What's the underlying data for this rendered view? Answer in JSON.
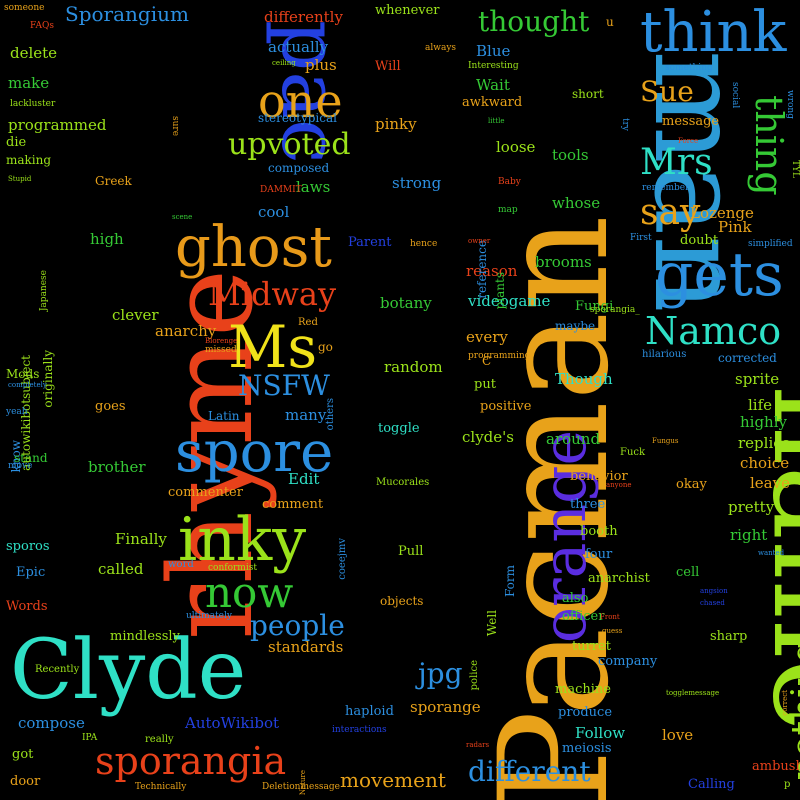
{
  "words": [
    {
      "text": "Pacman",
      "color": "#e8a21a"
    },
    {
      "text": "man",
      "color": "#2c9bd6"
    },
    {
      "text": "name",
      "color": "#9be21a"
    },
    {
      "text": "rhyme",
      "color": "#e8411a"
    },
    {
      "text": "Clyde",
      "color": "#2fe0c6"
    },
    {
      "text": "pac",
      "color": "#2340e0"
    },
    {
      "text": "think",
      "color": "#2c8fe0"
    },
    {
      "text": "one",
      "color": "#e8a21a"
    },
    {
      "text": "ghost",
      "color": "#e89a1a"
    },
    {
      "text": "gets",
      "color": "#2c8fe0"
    },
    {
      "text": "orange",
      "color": "#5a2de0"
    },
    {
      "text": "spore",
      "color": "#2c8fe0"
    },
    {
      "text": "inky",
      "color": "#9be21a"
    },
    {
      "text": "Ms",
      "color": "#f0e21a"
    },
    {
      "text": "sporangia",
      "color": "#e8411a"
    },
    {
      "text": "Namco",
      "color": "#2fe0c6"
    },
    {
      "text": "Mrs",
      "color": "#2fe0c6"
    },
    {
      "text": "say",
      "color": "#e8a21a"
    },
    {
      "text": "thing",
      "color": "#35c935"
    },
    {
      "text": "nothing",
      "color": "#9be21a"
    },
    {
      "text": "now",
      "color": "#35c935"
    },
    {
      "text": "Midway",
      "color": "#e8411a"
    },
    {
      "text": "upvoted",
      "color": "#9be21a"
    },
    {
      "text": "thought",
      "color": "#35c935"
    },
    {
      "text": "Sue",
      "color": "#e8a21a"
    },
    {
      "text": "NSFW",
      "color": "#2c8fe0"
    },
    {
      "text": "people",
      "color": "#2c8fe0"
    },
    {
      "text": "jpg",
      "color": "#2c8fe0"
    },
    {
      "text": "different",
      "color": "#2c8fe0"
    },
    {
      "text": "movement",
      "color": "#e8a21a"
    },
    {
      "text": "Sporangium",
      "color": "#2c8fe0"
    },
    {
      "text": "differently",
      "color": "#e8411a"
    },
    {
      "text": "whenever",
      "color": "#9be21a"
    },
    {
      "text": "actually",
      "color": "#2c8fe0"
    },
    {
      "text": "plus",
      "color": "#e8a21a"
    },
    {
      "text": "Will",
      "color": "#e8411a"
    },
    {
      "text": "Blue",
      "color": "#2c8fe0"
    },
    {
      "text": "Wait",
      "color": "#35c935"
    },
    {
      "text": "awkward",
      "color": "#e8a21a"
    },
    {
      "text": "short",
      "color": "#9be21a"
    },
    {
      "text": "message",
      "color": "#e8a21a"
    },
    {
      "text": "delete",
      "color": "#9be21a"
    },
    {
      "text": "make",
      "color": "#35c935"
    },
    {
      "text": "programmed",
      "color": "#9be21a"
    },
    {
      "text": "die",
      "color": "#9be21a"
    },
    {
      "text": "making",
      "color": "#9be21a"
    },
    {
      "text": "Greek",
      "color": "#e8a21a"
    },
    {
      "text": "high",
      "color": "#35c935"
    },
    {
      "text": "clever",
      "color": "#9be21a"
    },
    {
      "text": "anarchy",
      "color": "#e8a21a"
    },
    {
      "text": "go",
      "color": "#e8a21a"
    },
    {
      "text": "goes",
      "color": "#e8a21a"
    },
    {
      "text": "brother",
      "color": "#35c935"
    },
    {
      "text": "commenter",
      "color": "#e8a21a"
    },
    {
      "text": "Edit",
      "color": "#2fe0c6"
    },
    {
      "text": "comment",
      "color": "#e8a21a"
    },
    {
      "text": "Finally",
      "color": "#9be21a"
    },
    {
      "text": "called",
      "color": "#9be21a"
    },
    {
      "text": "sporos",
      "color": "#2fe0c6"
    },
    {
      "text": "Epic",
      "color": "#2c8fe0"
    },
    {
      "text": "Words",
      "color": "#e8411a"
    },
    {
      "text": "mindlessly",
      "color": "#9be21a"
    },
    {
      "text": "Recently",
      "color": "#9be21a"
    },
    {
      "text": "compose",
      "color": "#2c8fe0"
    },
    {
      "text": "got",
      "color": "#9be21a"
    },
    {
      "text": "door",
      "color": "#e8a21a"
    },
    {
      "text": "AutoWikibot",
      "color": "#2340e0"
    },
    {
      "text": "really",
      "color": "#9be21a"
    },
    {
      "text": "standards",
      "color": "#e8a21a"
    },
    {
      "text": "haploid",
      "color": "#2c8fe0"
    },
    {
      "text": "sporange",
      "color": "#e8a21a"
    },
    {
      "text": "Follow",
      "color": "#2fe0c6"
    },
    {
      "text": "love",
      "color": "#e8a21a"
    },
    {
      "text": "ambush",
      "color": "#e8411a"
    },
    {
      "text": "Calling",
      "color": "#2340e0"
    },
    {
      "text": "meiosis",
      "color": "#2c8fe0"
    },
    {
      "text": "produce",
      "color": "#2c8fe0"
    },
    {
      "text": "machine",
      "color": "#9be21a"
    },
    {
      "text": "company",
      "color": "#2c8fe0"
    },
    {
      "text": "turret",
      "color": "#9be21a"
    },
    {
      "text": "sharp",
      "color": "#9be21a"
    },
    {
      "text": "officer",
      "color": "#35c935"
    },
    {
      "text": "also",
      "color": "#35c935"
    },
    {
      "text": "anarchist",
      "color": "#9be21a"
    },
    {
      "text": "four",
      "color": "#2c8fe0"
    },
    {
      "text": "booth",
      "color": "#9be21a"
    },
    {
      "text": "three",
      "color": "#2c8fe0"
    },
    {
      "text": "pretty",
      "color": "#9be21a"
    },
    {
      "text": "right",
      "color": "#35c935"
    },
    {
      "text": "cell",
      "color": "#35c935"
    },
    {
      "text": "okay",
      "color": "#e8a21a"
    },
    {
      "text": "leave",
      "color": "#e8a21a"
    },
    {
      "text": "choice",
      "color": "#e8a21a"
    },
    {
      "text": "replies",
      "color": "#9be21a"
    },
    {
      "text": "highly",
      "color": "#35c935"
    },
    {
      "text": "life",
      "color": "#9be21a"
    },
    {
      "text": "sprite",
      "color": "#9be21a"
    },
    {
      "text": "corrected",
      "color": "#2c8fe0"
    },
    {
      "text": "hilarious",
      "color": "#2c8fe0"
    },
    {
      "text": "Though",
      "color": "#2fe0c6"
    },
    {
      "text": "maybe",
      "color": "#2c8fe0"
    },
    {
      "text": "Fungi",
      "color": "#35c935"
    },
    {
      "text": "behavior",
      "color": "#e8a21a"
    },
    {
      "text": "around",
      "color": "#35c935"
    },
    {
      "text": "Pull",
      "color": "#9be21a"
    },
    {
      "text": "objects",
      "color": "#e8a21a"
    },
    {
      "text": "clyde's",
      "color": "#9be21a"
    },
    {
      "text": "toggle",
      "color": "#2fe0c6"
    },
    {
      "text": "positive",
      "color": "#e8a21a"
    },
    {
      "text": "put",
      "color": "#9be21a"
    },
    {
      "text": "random",
      "color": "#9be21a"
    },
    {
      "text": "every",
      "color": "#e8a21a"
    },
    {
      "text": "reason",
      "color": "#e8411a"
    },
    {
      "text": "botany",
      "color": "#35c935"
    },
    {
      "text": "videogame",
      "color": "#2fe0c6"
    },
    {
      "text": "brooms",
      "color": "#35c935"
    },
    {
      "text": "strong",
      "color": "#2c8fe0"
    },
    {
      "text": "cool",
      "color": "#2c8fe0"
    },
    {
      "text": "laws",
      "color": "#35c935"
    },
    {
      "text": "composed",
      "color": "#2c8fe0"
    },
    {
      "text": "stereotypical",
      "color": "#2c8fe0"
    },
    {
      "text": "pinky",
      "color": "#e8a21a"
    },
    {
      "text": "loose",
      "color": "#9be21a"
    },
    {
      "text": "tools",
      "color": "#35c935"
    },
    {
      "text": "whose",
      "color": "#35c935"
    },
    {
      "text": "Lozenge",
      "color": "#e8a21a"
    },
    {
      "text": "Pink",
      "color": "#e8a21a"
    },
    {
      "text": "doubt",
      "color": "#9be21a"
    },
    {
      "text": "Parent",
      "color": "#2340e0"
    },
    {
      "text": "Latin",
      "color": "#2c8fe0"
    },
    {
      "text": "many",
      "color": "#2c8fe0"
    },
    {
      "text": "Mods",
      "color": "#9be21a"
    },
    {
      "text": "know",
      "color": "#2c8fe0"
    },
    {
      "text": "stand",
      "color": "#35c935"
    },
    {
      "text": "Mucorales",
      "color": "#9be21a"
    },
    {
      "text": "Fuck",
      "color": "#9be21a"
    },
    {
      "text": "Red",
      "color": "#e8a21a"
    },
    {
      "text": "missed",
      "color": "#e8a21a"
    },
    {
      "text": "others",
      "color": "#2c8fe0"
    },
    {
      "text": "C",
      "color": "#e8a21a"
    },
    {
      "text": "programming",
      "color": "#e8a21a"
    },
    {
      "text": "interactions",
      "color": "#2340e0"
    },
    {
      "text": "Deletionmessage",
      "color": "#e8a21a"
    },
    {
      "text": "Technically",
      "color": "#e8a21a"
    },
    {
      "text": "someone",
      "color": "#e8a21a"
    },
    {
      "text": "FAQs",
      "color": "#e8411a"
    },
    {
      "text": "lackluster",
      "color": "#9be21a"
    },
    {
      "text": "Stupid",
      "color": "#9be21a"
    },
    {
      "text": "always",
      "color": "#e8a21a"
    },
    {
      "text": "Interesting",
      "color": "#9be21a"
    },
    {
      "text": "ceiling",
      "color": "#9be21a"
    },
    {
      "text": "sure",
      "color": "#e8a21a"
    },
    {
      "text": "u",
      "color": "#e8a21a"
    },
    {
      "text": "something",
      "color": "#2c8fe0"
    },
    {
      "text": "social",
      "color": "#2c8fe0"
    },
    {
      "text": "wrong",
      "color": "#2c8fe0"
    },
    {
      "text": "try",
      "color": "#2c8fe0"
    },
    {
      "text": "Force",
      "color": "#e8411a"
    },
    {
      "text": "little",
      "color": "#35c935"
    },
    {
      "text": "Baby",
      "color": "#e8411a"
    },
    {
      "text": "remember",
      "color": "#2c8fe0"
    },
    {
      "text": "TYL",
      "color": "#9be21a"
    },
    {
      "text": "map",
      "color": "#35c935"
    },
    {
      "text": "plants",
      "color": "#35c935"
    },
    {
      "text": "reference",
      "color": "#2c8fe0"
    },
    {
      "text": "owner",
      "color": "#e8411a"
    },
    {
      "text": "First",
      "color": "#2c8fe0"
    },
    {
      "text": "simplified",
      "color": "#2c8fe0"
    },
    {
      "text": "hence",
      "color": "#e8a21a"
    },
    {
      "text": "DAMMIT",
      "color": "#e8411a"
    },
    {
      "text": "scene",
      "color": "#35c935"
    },
    {
      "text": "Japanese",
      "color": "#9be21a"
    },
    {
      "text": "autowikibotsubject",
      "color": "#9be21a"
    },
    {
      "text": "originally",
      "color": "#9be21a"
    },
    {
      "text": "yeah",
      "color": "#2c8fe0"
    },
    {
      "text": "completely",
      "color": "#2c8fe0"
    },
    {
      "text": "move",
      "color": "#2c8fe0"
    },
    {
      "text": "Blorenge",
      "color": "#e8411a"
    },
    {
      "text": "sporangia_",
      "color": "#9be21a"
    },
    {
      "text": "Fungus",
      "color": "#e8a21a"
    },
    {
      "text": "anyone",
      "color": "#e8411a"
    },
    {
      "text": "word",
      "color": "#2c8fe0"
    },
    {
      "text": "conformist",
      "color": "#9be21a"
    },
    {
      "text": "coeejmv",
      "color": "#2c8fe0"
    },
    {
      "text": "ultimately",
      "color": "#2c8fe0"
    },
    {
      "text": "police",
      "color": "#9be21a"
    },
    {
      "text": "Well",
      "color": "#9be21a"
    },
    {
      "text": "Form",
      "color": "#2c8fe0"
    },
    {
      "text": "Front",
      "color": "#e8411a"
    },
    {
      "text": "guess",
      "color": "#e8a21a"
    },
    {
      "text": "wanted",
      "color": "#2c8fe0"
    },
    {
      "text": "angsion",
      "color": "#2340e0"
    },
    {
      "text": "chased",
      "color": "#2340e0"
    },
    {
      "text": "togglemessage",
      "color": "#9be21a"
    },
    {
      "text": "correct",
      "color": "#e8a21a"
    },
    {
      "text": "Nature",
      "color": "#e8a21a"
    },
    {
      "text": "radars",
      "color": "#e8411a"
    },
    {
      "text": "IPA",
      "color": "#9be21a"
    },
    {
      "text": "p",
      "color": "#9be21a"
    }
  ]
}
